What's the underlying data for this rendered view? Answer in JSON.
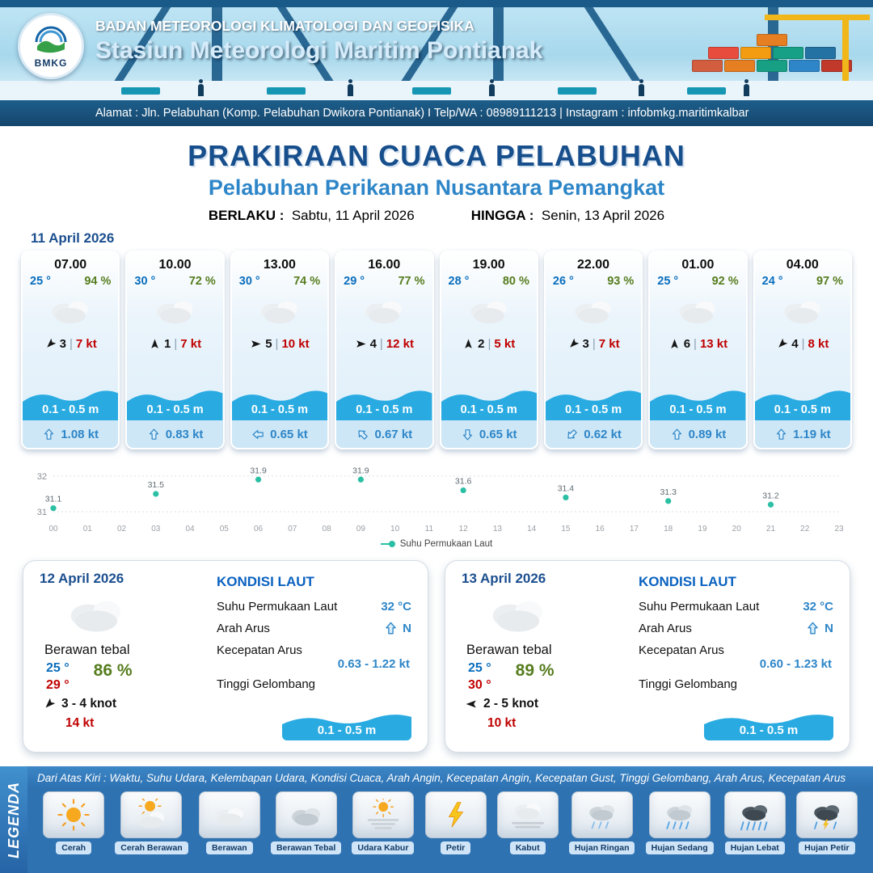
{
  "header": {
    "logo_text": "BMKG",
    "agency": "BADAN METEOROLOGI KLIMATOLOGI DAN GEOFISIKA",
    "station": "Stasiun Meteorologi Maritim Pontianak",
    "address": "Alamat : Jln. Pelabuhan (Komp. Pelabuhan Dwikora Pontianak) I Telp/WA : 08989111213 | Instagram : infobmkg.maritimkalbar"
  },
  "title": {
    "main": "PRAKIRAAN CUACA PELABUHAN",
    "subtitle": "Pelabuhan Perikanan Nusantara Pemangkat",
    "valid_from_label": "BERLAKU :",
    "valid_from": "Sabtu, 11 April 2026",
    "valid_to_label": "HINGGA :",
    "valid_to": "Senin, 13 April 2026"
  },
  "forecast": {
    "date": "11 April 2026",
    "cards": [
      {
        "time": "07.00",
        "temp": "25 °",
        "humidity": "94 %",
        "weather": "berawan",
        "wind_deg": 225,
        "wind_num": "3",
        "wind_speed": "7 kt",
        "wave": "0.1 - 0.5 m",
        "current_deg": 0,
        "current": "1.08 kt"
      },
      {
        "time": "10.00",
        "temp": "30 °",
        "humidity": "72 %",
        "weather": "berawan",
        "wind_deg": 0,
        "wind_num": "1",
        "wind_speed": "7 kt",
        "wave": "0.1 - 0.5 m",
        "current_deg": 0,
        "current": "0.83 kt"
      },
      {
        "time": "13.00",
        "temp": "30 °",
        "humidity": "74 %",
        "weather": "berawan",
        "wind_deg": 90,
        "wind_num": "5",
        "wind_speed": "10 kt",
        "wave": "0.1 - 0.5 m",
        "current_deg": 270,
        "current": "0.65 kt"
      },
      {
        "time": "16.00",
        "temp": "29 °",
        "humidity": "77 %",
        "weather": "berawan",
        "wind_deg": 90,
        "wind_num": "4",
        "wind_speed": "12 kt",
        "wave": "0.1 - 0.5 m",
        "current_deg": 315,
        "current": "0.67 kt"
      },
      {
        "time": "19.00",
        "temp": "28 °",
        "humidity": "80 %",
        "weather": "berawan",
        "wind_deg": 0,
        "wind_num": "2",
        "wind_speed": "5 kt",
        "wave": "0.1 - 0.5 m",
        "current_deg": 180,
        "current": "0.65 kt"
      },
      {
        "time": "22.00",
        "temp": "26 °",
        "humidity": "93 %",
        "weather": "berawan",
        "wind_deg": 225,
        "wind_num": "3",
        "wind_speed": "7 kt",
        "wave": "0.1 - 0.5 m",
        "current_deg": 225,
        "current": "0.62 kt"
      },
      {
        "time": "01.00",
        "temp": "25 °",
        "humidity": "92 %",
        "weather": "berawan",
        "wind_deg": 0,
        "wind_num": "6",
        "wind_speed": "13 kt",
        "wave": "0.1 - 0.5 m",
        "current_deg": 0,
        "current": "0.89 kt"
      },
      {
        "time": "04.00",
        "temp": "24 °",
        "humidity": "97 %",
        "weather": "berawan",
        "wind_deg": 225,
        "wind_num": "4",
        "wind_speed": "8 kt",
        "wave": "0.1 - 0.5 m",
        "current_deg": 0,
        "current": "1.19 kt"
      }
    ]
  },
  "chart_data": {
    "type": "scatter",
    "series_name": "Suhu Permukaan Laut",
    "x": [
      0,
      3,
      6,
      9,
      12,
      15,
      18,
      21
    ],
    "values": [
      31.1,
      31.5,
      31.9,
      31.9,
      31.6,
      31.4,
      31.3,
      31.2
    ],
    "x_ticks": [
      "00",
      "01",
      "02",
      "03",
      "04",
      "05",
      "06",
      "07",
      "08",
      "09",
      "10",
      "11",
      "12",
      "13",
      "14",
      "15",
      "16",
      "17",
      "18",
      "19",
      "20",
      "21",
      "22",
      "23"
    ],
    "y_ticks": [
      31,
      32
    ],
    "ylim": [
      30.8,
      32.2
    ],
    "color": "#2bbfa4",
    "grid": true,
    "legend_position": "bottom"
  },
  "daily": [
    {
      "date": "12 April 2026",
      "condition": "Berawan tebal",
      "temp_min": "25 °",
      "temp_max": "29 °",
      "humidity": "86 %",
      "wind_deg": 225,
      "wind_range": "3 - 4 knot",
      "gust": "14 kt",
      "sea": {
        "heading": "KONDISI LAUT",
        "sst_label": "Suhu Permukaan Laut",
        "sst": "32 °C",
        "current_dir_label": "Arah Arus",
        "current_dir_deg": 0,
        "current_dir": "N",
        "current_speed_label": "Kecepatan Arus",
        "current_speed": "0.63 - 1.22 kt",
        "wave_label": "Tinggi Gelombang",
        "wave": "0.1 - 0.5 m"
      }
    },
    {
      "date": "13 April 2026",
      "condition": "Berawan tebal",
      "temp_min": "25 °",
      "temp_max": "30 °",
      "humidity": "89 %",
      "wind_deg": 270,
      "wind_range": "2  - 5 knot",
      "gust": "10 kt",
      "sea": {
        "heading": "KONDISI LAUT",
        "sst_label": "Suhu Permukaan Laut",
        "sst": "32 °C",
        "current_dir_label": "Arah Arus",
        "current_dir_deg": 0,
        "current_dir": "N",
        "current_speed_label": "Kecepatan Arus",
        "current_speed": "0.60 - 1.23 kt",
        "wave_label": "Tinggi Gelombang",
        "wave": "0.1 - 0.5 m"
      }
    }
  ],
  "legend": {
    "title": "LEGENDA",
    "description": "Dari Atas Kiri : Waktu, Suhu Udara, Kelembapan Udara, Kondisi Cuaca, Arah Angin, Kecepatan Angin, Kecepatan Gust, Tinggi Gelombang, Arah Arus, Kecepatan Arus",
    "items": [
      {
        "label": "Cerah",
        "icon": "cerah"
      },
      {
        "label": "Cerah Berawan",
        "icon": "cerah-berawan"
      },
      {
        "label": "Berawan",
        "icon": "berawan"
      },
      {
        "label": "Berawan Tebal",
        "icon": "berawan-tebal"
      },
      {
        "label": "Udara Kabur",
        "icon": "udara-kabur"
      },
      {
        "label": "Petir",
        "icon": "petir"
      },
      {
        "label": "Kabut",
        "icon": "kabut"
      },
      {
        "label": "Hujan Ringan",
        "icon": "hujan-ringan"
      },
      {
        "label": "Hujan Sedang",
        "icon": "hujan-sedang"
      },
      {
        "label": "Hujan Lebat",
        "icon": "hujan-lebat"
      },
      {
        "label": "Hujan Petir",
        "icon": "hujan-petir"
      }
    ]
  }
}
